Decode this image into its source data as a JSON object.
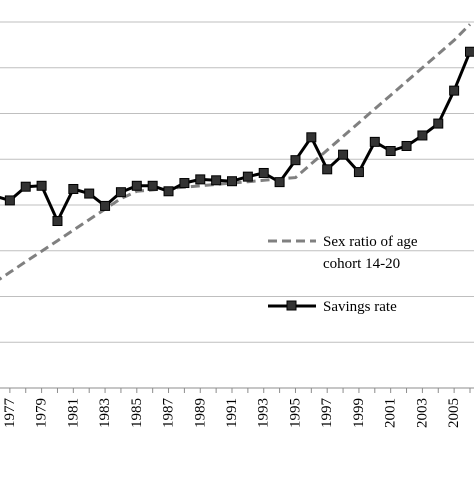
{
  "chart_data": {
    "type": "line",
    "x": [
      1976,
      1977,
      1978,
      1979,
      1980,
      1981,
      1982,
      1983,
      1984,
      1985,
      1986,
      1987,
      1988,
      1989,
      1990,
      1991,
      1992,
      1993,
      1994,
      1995,
      1996,
      1997,
      1998,
      1999,
      2000,
      2001,
      2002,
      2003,
      2004,
      2005,
      2006
    ],
    "x_tick_labels": [
      "1977",
      "1979",
      "1981",
      "1983",
      "1985",
      "1987",
      "1989",
      "1991",
      "1993",
      "1995",
      "1997",
      "1999",
      "2001",
      "2003",
      "2005"
    ],
    "ylim": [
      0,
      8
    ],
    "grid": true,
    "legend_position": "right",
    "series": [
      {
        "name": "Sex ratio of age cohort 14-20",
        "style": "dashed",
        "color": "#808080",
        "values": [
          2.3,
          2.53,
          2.76,
          2.99,
          3.22,
          3.45,
          3.68,
          3.91,
          4.14,
          4.3,
          4.33,
          4.36,
          4.39,
          4.42,
          4.45,
          4.48,
          4.51,
          4.54,
          4.57,
          4.6,
          4.9,
          5.2,
          5.5,
          5.8,
          6.1,
          6.4,
          6.7,
          7.0,
          7.3,
          7.6,
          7.95
        ]
      },
      {
        "name": "Savings rate",
        "style": "solid-square-markers",
        "color": "#000000",
        "values": [
          4.2,
          4.1,
          4.4,
          4.42,
          3.65,
          4.35,
          4.25,
          3.98,
          4.28,
          4.42,
          4.42,
          4.3,
          4.48,
          4.56,
          4.54,
          4.52,
          4.62,
          4.7,
          4.5,
          4.98,
          5.48,
          4.78,
          5.1,
          4.72,
          5.38,
          5.18,
          5.29,
          5.52,
          5.78,
          6.5,
          7.35
        ]
      }
    ]
  },
  "legend": {
    "sex_ratio_line1": "Sex ratio of age",
    "sex_ratio_line2": "cohort 14-20",
    "savings": "Savings rate"
  }
}
